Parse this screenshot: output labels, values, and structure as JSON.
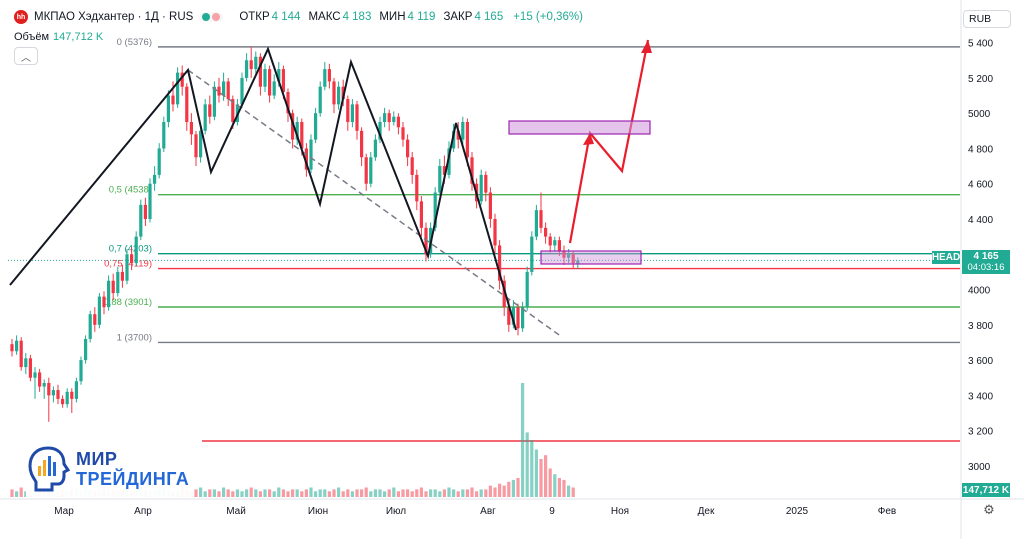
{
  "header": {
    "logo_text": "hh",
    "title": "МКПАО Хэдхантер · 1Д · RUS",
    "ohlc": [
      {
        "key": "ОТКР",
        "value": "4 144"
      },
      {
        "key": "МАКС",
        "value": "4 183"
      },
      {
        "key": "МИН",
        "value": "4 119"
      },
      {
        "key": "ЗАКР",
        "value": "4 165"
      }
    ],
    "change": "+15 (+0,36%)"
  },
  "volume_line": {
    "label": "Объём",
    "value": "147,712 K"
  },
  "currency_button": "RUB",
  "price_tag": {
    "symbol": "HEAD",
    "price": "4 165",
    "countdown": "04:03:16"
  },
  "volume_tag": "147,712 K",
  "brand": {
    "line1": "МИР",
    "line2": "ТРЕЙДИНГА"
  },
  "colors": {
    "up": "#22ab94",
    "down": "#f23645",
    "fib_top": "#787b86",
    "fib_green": "#4caf50",
    "fib_teal": "#089981",
    "fib_red": "#f23645",
    "drawing": "#131722",
    "arrow": "#e91e2c",
    "box": "#ce93d8"
  },
  "chart_data": {
    "type": "candlestick",
    "y_axis": {
      "ticks": [
        3000,
        3200,
        3400,
        3600,
        3800,
        4000,
        4200,
        4400,
        4600,
        4800,
        5000,
        5200,
        5400
      ],
      "tick_labels": [
        "3000",
        "3 200",
        "3 400",
        "3 600",
        "3 800",
        "4000",
        "4200",
        "4 400",
        "4 600",
        "4 800",
        "5000",
        "5 200",
        "5 400"
      ],
      "range": [
        2920,
        5500
      ]
    },
    "x_axis": {
      "labels": [
        "Мар",
        "Апр",
        "Май",
        "Июн",
        "Июл",
        "Авг",
        "9",
        "Ноя",
        "Дек",
        "2025",
        "Фев"
      ]
    },
    "fib_levels": [
      {
        "label": "0 (5376)",
        "value": 5376,
        "color": "#787b86"
      },
      {
        "label": "0,5 (4538)",
        "value": 4538,
        "color": "#4caf50"
      },
      {
        "label": "0,7 (4203)",
        "value": 4203,
        "color": "#089981"
      },
      {
        "label": "0,75 (4119)",
        "value": 4119,
        "color": "#f23645"
      },
      {
        "label": "0,88 (3901)",
        "value": 3901,
        "color": "#4caf50"
      },
      {
        "label": "1 (3700)",
        "value": 3700,
        "color": "#787b86"
      }
    ],
    "last_price": 4165,
    "candles": [
      [
        3690,
        3650,
        3720,
        3620
      ],
      [
        3650,
        3710,
        3740,
        3630
      ],
      [
        3710,
        3560,
        3730,
        3540
      ],
      [
        3560,
        3610,
        3640,
        3520
      ],
      [
        3610,
        3500,
        3630,
        3480
      ],
      [
        3500,
        3530,
        3560,
        3380
      ],
      [
        3530,
        3450,
        3550,
        3420
      ],
      [
        3450,
        3470,
        3490,
        3380
      ],
      [
        3470,
        3400,
        3500,
        3250
      ],
      [
        3400,
        3430,
        3450,
        3360
      ],
      [
        3430,
        3380,
        3460,
        3350
      ],
      [
        3380,
        3350,
        3400,
        3330
      ],
      [
        3350,
        3420,
        3440,
        3330
      ],
      [
        3420,
        3380,
        3440,
        3300
      ],
      [
        3380,
        3480,
        3500,
        3360
      ],
      [
        3480,
        3600,
        3620,
        3460
      ],
      [
        3600,
        3720,
        3740,
        3580
      ],
      [
        3720,
        3860,
        3880,
        3700
      ],
      [
        3860,
        3800,
        3900,
        3760
      ],
      [
        3800,
        3960,
        3980,
        3780
      ],
      [
        3960,
        3900,
        3990,
        3860
      ],
      [
        3900,
        4050,
        4080,
        3880
      ],
      [
        4050,
        3980,
        4090,
        3940
      ],
      [
        3980,
        4100,
        4130,
        3960
      ],
      [
        4100,
        4050,
        4140,
        4010
      ],
      [
        4050,
        4200,
        4230,
        4030
      ],
      [
        4200,
        4150,
        4240,
        4110
      ],
      [
        4150,
        4300,
        4330,
        4130
      ],
      [
        4300,
        4480,
        4510,
        4280
      ],
      [
        4480,
        4400,
        4520,
        4360
      ],
      [
        4400,
        4600,
        4630,
        4380
      ],
      [
        4600,
        4650,
        4700,
        4560
      ],
      [
        4650,
        4800,
        4830,
        4630
      ],
      [
        4800,
        4950,
        4980,
        4780
      ],
      [
        4950,
        5100,
        5130,
        4920
      ],
      [
        5100,
        5050,
        5180,
        5010
      ],
      [
        5050,
        5230,
        5260,
        5030
      ],
      [
        5230,
        5150,
        5270,
        5100
      ],
      [
        5150,
        4950,
        5170,
        4900
      ],
      [
        4950,
        4880,
        5000,
        4820
      ],
      [
        4880,
        4750,
        4900,
        4700
      ],
      [
        4750,
        4900,
        4930,
        4720
      ],
      [
        4900,
        5050,
        5080,
        4880
      ],
      [
        5050,
        4980,
        5100,
        4940
      ],
      [
        4980,
        5150,
        5180,
        4960
      ],
      [
        5150,
        5100,
        5200,
        5060
      ],
      [
        5100,
        5180,
        5230,
        5070
      ],
      [
        5180,
        5080,
        5200,
        5040
      ],
      [
        5080,
        4950,
        5100,
        4910
      ],
      [
        4950,
        5050,
        5080,
        4930
      ],
      [
        5050,
        5200,
        5230,
        5030
      ],
      [
        5200,
        5300,
        5340,
        5180
      ],
      [
        5300,
        5250,
        5376,
        5200
      ],
      [
        5250,
        5320,
        5350,
        5220
      ],
      [
        5320,
        5150,
        5340,
        5100
      ],
      [
        5150,
        5250,
        5280,
        5120
      ],
      [
        5250,
        5100,
        5270,
        5060
      ],
      [
        5100,
        5180,
        5220,
        5080
      ],
      [
        5180,
        5250,
        5290,
        5150
      ],
      [
        5250,
        5120,
        5270,
        5080
      ],
      [
        5120,
        5000,
        5140,
        4950
      ],
      [
        5000,
        4850,
        5020,
        4800
      ],
      [
        4850,
        4950,
        4980,
        4820
      ],
      [
        4950,
        4800,
        4970,
        4760
      ],
      [
        4800,
        4680,
        4830,
        4640
      ],
      [
        4680,
        4850,
        4880,
        4660
      ],
      [
        4850,
        5000,
        5030,
        4830
      ],
      [
        5000,
        5150,
        5180,
        4980
      ],
      [
        5150,
        5250,
        5290,
        5130
      ],
      [
        5250,
        5180,
        5280,
        5140
      ],
      [
        5180,
        5050,
        5200,
        5000
      ],
      [
        5050,
        5150,
        5180,
        5020
      ],
      [
        5150,
        5080,
        5190,
        5040
      ],
      [
        5080,
        4950,
        5100,
        4900
      ],
      [
        4950,
        5050,
        5080,
        4920
      ],
      [
        5050,
        4900,
        5070,
        4850
      ],
      [
        4900,
        4750,
        4920,
        4700
      ],
      [
        4750,
        4600,
        4770,
        4560
      ],
      [
        4600,
        4750,
        4780,
        4580
      ],
      [
        4750,
        4850,
        4880,
        4730
      ],
      [
        4850,
        4950,
        4980,
        4830
      ],
      [
        4950,
        5000,
        5030,
        4920
      ],
      [
        5000,
        4950,
        5020,
        4900
      ],
      [
        4950,
        4980,
        5010,
        4930
      ],
      [
        4980,
        4920,
        5000,
        4880
      ],
      [
        4920,
        4850,
        4950,
        4810
      ],
      [
        4850,
        4750,
        4880,
        4700
      ],
      [
        4750,
        4650,
        4780,
        4600
      ],
      [
        4650,
        4500,
        4680,
        4450
      ],
      [
        4500,
        4350,
        4530,
        4300
      ],
      [
        4350,
        4200,
        4380,
        4160
      ],
      [
        4200,
        4350,
        4380,
        4180
      ],
      [
        4350,
        4550,
        4580,
        4330
      ],
      [
        4550,
        4700,
        4740,
        4530
      ],
      [
        4700,
        4650,
        4760,
        4600
      ],
      [
        4650,
        4800,
        4840,
        4630
      ],
      [
        4800,
        4900,
        4940,
        4780
      ],
      [
        4900,
        4850,
        4950,
        4800
      ],
      [
        4850,
        4950,
        4980,
        4820
      ],
      [
        4950,
        4750,
        4970,
        4700
      ],
      [
        4750,
        4600,
        4780,
        4560
      ],
      [
        4600,
        4500,
        4630,
        4460
      ],
      [
        4500,
        4650,
        4680,
        4480
      ],
      [
        4650,
        4550,
        4670,
        4500
      ],
      [
        4550,
        4400,
        4580,
        4350
      ],
      [
        4400,
        4250,
        4430,
        4200
      ],
      [
        4250,
        4050,
        4280,
        4000
      ],
      [
        4050,
        3900,
        4080,
        3850
      ],
      [
        3900,
        3800,
        3950,
        3760
      ],
      [
        3800,
        3900,
        3940,
        3780
      ],
      [
        3900,
        3780,
        3920,
        3740
      ],
      [
        3780,
        3900,
        3930,
        3760
      ],
      [
        3900,
        4100,
        4130,
        3880
      ],
      [
        4100,
        4300,
        4330,
        4080
      ],
      [
        4300,
        4450,
        4480,
        4280
      ],
      [
        4450,
        4350,
        4550,
        4320
      ],
      [
        4350,
        4300,
        4380,
        4260
      ],
      [
        4300,
        4250,
        4320,
        4210
      ],
      [
        4250,
        4280,
        4300,
        4220
      ],
      [
        4280,
        4220,
        4300,
        4190
      ],
      [
        4220,
        4180,
        4250,
        4140
      ],
      [
        4180,
        4200,
        4230,
        4150
      ],
      [
        4200,
        4150,
        4220,
        4120
      ],
      [
        4144,
        4165,
        4183,
        4119
      ]
    ],
    "volumes": [
      4,
      3,
      5,
      3,
      4,
      6,
      3,
      3,
      5,
      3,
      3,
      4,
      3,
      4,
      5,
      4,
      5,
      4,
      3,
      4,
      5,
      4,
      4,
      3,
      4,
      5,
      3,
      4,
      5,
      4,
      3,
      4,
      4,
      5,
      4,
      3,
      4,
      5,
      4,
      3,
      4,
      5,
      3,
      4,
      4,
      3,
      5,
      4,
      3,
      4,
      3,
      4,
      5,
      4,
      3,
      4,
      4,
      3,
      5,
      4,
      3,
      4,
      4,
      3,
      4,
      5,
      3,
      4,
      4,
      3,
      4,
      5,
      3,
      4,
      3,
      4,
      4,
      5,
      3,
      4,
      4,
      3,
      4,
      5,
      3,
      4,
      4,
      3,
      4,
      5,
      3,
      4,
      4,
      3,
      4,
      5,
      4,
      3,
      4,
      4,
      5,
      3,
      4,
      4,
      6,
      5,
      7,
      6,
      8,
      9,
      10,
      60,
      34,
      30,
      25,
      20,
      22,
      15,
      12,
      10,
      9,
      6,
      5
    ],
    "volume_red_line": 70
  }
}
